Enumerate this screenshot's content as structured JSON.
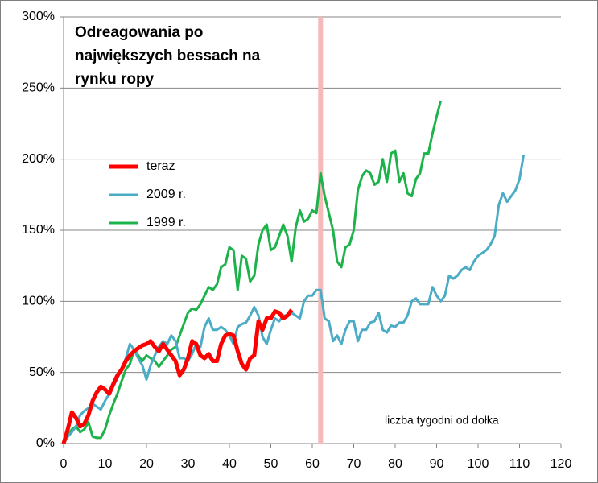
{
  "chart_data": {
    "type": "line",
    "title": "Odreagowania po największych bessach na rynku ropy",
    "annotation": "liczba tygodni od dołka",
    "xlim": [
      0,
      120
    ],
    "xticks": [
      0,
      10,
      20,
      30,
      40,
      50,
      60,
      70,
      80,
      90,
      100,
      110,
      120
    ],
    "ylim": [
      0,
      300
    ],
    "yticks": [
      {
        "value": 0,
        "label": "0%"
      },
      {
        "value": 50,
        "label": "50%"
      },
      {
        "value": 100,
        "label": "100%"
      },
      {
        "value": 150,
        "label": "150%"
      },
      {
        "value": 200,
        "label": "200%"
      },
      {
        "value": 250,
        "label": "250%"
      },
      {
        "value": 300,
        "label": "300%"
      }
    ],
    "grid": true,
    "legend": "left",
    "highlight_x": 62,
    "highlight_color": "#f6b9b9",
    "series": [
      {
        "name": "teraz",
        "color": "#ff0000",
        "x": [
          0,
          1,
          2,
          3,
          4,
          5,
          6,
          7,
          8,
          9,
          10,
          11,
          12,
          13,
          14,
          15,
          16,
          17,
          18,
          19,
          20,
          21,
          22,
          23,
          24,
          25,
          26,
          27,
          28,
          29,
          30,
          31,
          32,
          33,
          34,
          35,
          36,
          37,
          38,
          39,
          40,
          41,
          42,
          43,
          44,
          45,
          46,
          47,
          48,
          49,
          50,
          51,
          52,
          53,
          54,
          55
        ],
        "values": [
          0,
          10,
          22,
          18,
          12,
          14,
          20,
          30,
          36,
          40,
          38,
          35,
          42,
          48,
          52,
          58,
          62,
          65,
          67,
          69,
          70,
          72,
          68,
          65,
          70,
          66,
          62,
          58,
          48,
          52,
          60,
          72,
          70,
          62,
          60,
          63,
          58,
          58,
          70,
          76,
          77,
          76,
          65,
          56,
          52,
          60,
          62,
          86,
          80,
          88,
          88,
          93,
          92,
          88,
          90,
          94
        ]
      },
      {
        "name": "2009 r.",
        "color": "#4bacc6",
        "x": [
          0,
          1,
          2,
          3,
          4,
          5,
          6,
          7,
          8,
          9,
          10,
          11,
          12,
          13,
          14,
          15,
          16,
          17,
          18,
          19,
          20,
          21,
          22,
          23,
          24,
          25,
          26,
          27,
          28,
          29,
          30,
          31,
          32,
          33,
          34,
          35,
          36,
          37,
          38,
          39,
          40,
          41,
          42,
          43,
          44,
          45,
          46,
          47,
          48,
          49,
          50,
          51,
          52,
          53,
          54,
          55,
          56,
          57,
          58,
          59,
          60,
          61,
          62,
          63,
          64,
          65,
          66,
          67,
          68,
          69,
          70,
          71,
          72,
          73,
          74,
          75,
          76,
          77,
          78,
          79,
          80,
          81,
          82,
          83,
          84,
          85,
          86,
          87,
          88,
          89,
          90,
          91,
          92,
          93,
          94,
          95,
          96,
          97,
          98,
          99,
          100,
          101,
          102,
          103,
          104,
          105,
          106,
          107,
          108,
          109,
          110,
          111
        ],
        "values": [
          0,
          5,
          8,
          12,
          20,
          23,
          25,
          28,
          26,
          24,
          30,
          35,
          40,
          46,
          52,
          60,
          70,
          66,
          60,
          55,
          45,
          55,
          62,
          68,
          72,
          70,
          76,
          72,
          60,
          60,
          58,
          63,
          70,
          68,
          82,
          88,
          80,
          80,
          82,
          80,
          76,
          70,
          82,
          84,
          85,
          90,
          96,
          90,
          75,
          70,
          80,
          88,
          86,
          90,
          90,
          92,
          90,
          88,
          100,
          104,
          104,
          108,
          108,
          88,
          86,
          72,
          76,
          70,
          80,
          86,
          86,
          72,
          80,
          80,
          85,
          86,
          92,
          80,
          78,
          83,
          82,
          85,
          85,
          90,
          100,
          102,
          98,
          98,
          98,
          110,
          104,
          100,
          104,
          118,
          116,
          118,
          122,
          124,
          122,
          128,
          132,
          134,
          136,
          140,
          146,
          168,
          176,
          170,
          174,
          178,
          186,
          203
        ]
      },
      {
        "name": "1999 r.",
        "color": "#1db34b",
        "x": [
          0,
          1,
          2,
          3,
          4,
          5,
          6,
          7,
          8,
          9,
          10,
          11,
          12,
          13,
          14,
          15,
          16,
          17,
          18,
          19,
          20,
          21,
          22,
          23,
          24,
          25,
          26,
          27,
          28,
          29,
          30,
          31,
          32,
          33,
          34,
          35,
          36,
          37,
          38,
          39,
          40,
          41,
          42,
          43,
          44,
          45,
          46,
          47,
          48,
          49,
          50,
          51,
          52,
          53,
          54,
          55,
          56,
          57,
          58,
          59,
          60,
          61,
          62,
          63,
          64,
          65,
          66,
          67,
          68,
          69,
          70,
          71,
          72,
          73,
          74,
          75,
          76,
          77,
          78,
          79,
          80,
          81,
          82,
          83,
          84,
          85,
          86,
          87,
          88,
          89,
          90,
          91
        ],
        "values": [
          0,
          5,
          10,
          12,
          8,
          10,
          15,
          5,
          4,
          4,
          10,
          20,
          28,
          35,
          44,
          52,
          56,
          66,
          62,
          58,
          62,
          60,
          58,
          54,
          58,
          62,
          66,
          68,
          76,
          84,
          92,
          95,
          94,
          98,
          104,
          110,
          108,
          112,
          124,
          126,
          138,
          136,
          108,
          132,
          130,
          114,
          118,
          140,
          150,
          154,
          136,
          138,
          146,
          154,
          146,
          128,
          152,
          164,
          156,
          158,
          164,
          162,
          190,
          174,
          162,
          150,
          128,
          124,
          138,
          140,
          150,
          178,
          188,
          192,
          190,
          182,
          184,
          200,
          184,
          204,
          206,
          184,
          190,
          176,
          174,
          186,
          190,
          204,
          204,
          218,
          230,
          241
        ]
      }
    ]
  }
}
